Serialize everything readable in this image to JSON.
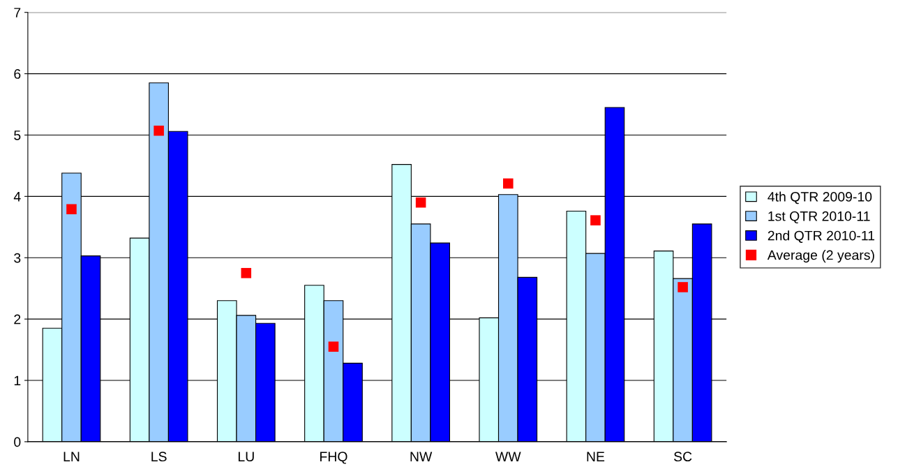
{
  "chart_data": {
    "type": "bar",
    "categories": [
      "LN",
      "LS",
      "LU",
      "FHQ",
      "NW",
      "WW",
      "NE",
      "SC"
    ],
    "series": [
      {
        "name": "4th QTR 2009-10",
        "color": "#ccffff",
        "values": [
          1.85,
          3.32,
          2.3,
          2.55,
          4.52,
          2.02,
          3.76,
          3.11
        ]
      },
      {
        "name": "1st QTR 2010-11",
        "color": "#99ccff",
        "values": [
          4.38,
          5.85,
          2.06,
          2.3,
          3.55,
          4.03,
          3.07,
          2.66
        ]
      },
      {
        "name": "2nd QTR 2010-11",
        "color": "#0000ff",
        "values": [
          3.03,
          5.06,
          1.93,
          1.28,
          3.24,
          2.68,
          5.45,
          3.55
        ]
      },
      {
        "name": "Average (2 years)",
        "type": "scatter",
        "marker": "square",
        "color": "#ff0000",
        "values": [
          3.79,
          5.07,
          2.75,
          1.55,
          3.9,
          4.21,
          3.61,
          2.52
        ]
      }
    ],
    "ylim": [
      0,
      7
    ],
    "yticks": [
      0,
      1,
      2,
      3,
      4,
      5,
      6,
      7
    ],
    "grid": "y",
    "legend": "right"
  }
}
